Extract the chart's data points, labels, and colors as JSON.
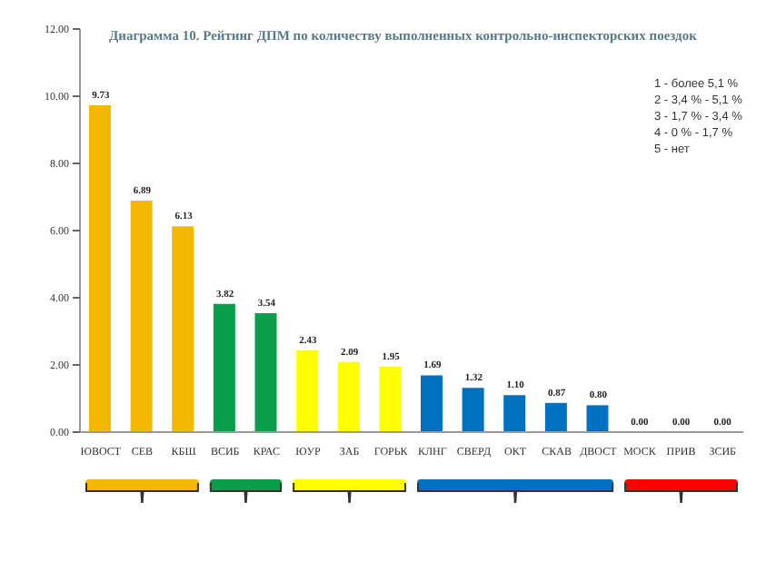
{
  "chart_data": {
    "type": "bar",
    "title": "Диаграмма 10.  Рейтинг ДПМ по количеству выполненных контрольно-инспекторских поездок",
    "categories": [
      "ЮВОСТ",
      "СЕВ",
      "КБШ",
      "ВСИБ",
      "КРАС",
      "ЮУР",
      "ЗАБ",
      "ГОРЬК",
      "КЛНГ",
      "СВЕРД",
      "ОКТ",
      "СКАВ",
      "ДВОСТ",
      "МОСК",
      "ПРИВ",
      "ЗСИБ"
    ],
    "values": [
      9.73,
      6.89,
      6.13,
      3.82,
      3.54,
      2.43,
      2.09,
      1.95,
      1.69,
      1.32,
      1.1,
      0.87,
      0.8,
      0,
      0,
      0
    ],
    "colors": [
      "#f5b800",
      "#f5b800",
      "#f5b800",
      "#0a9e4a",
      "#0a9e4a",
      "#ffff00",
      "#ffff00",
      "#ffff00",
      "#0070c0",
      "#0070c0",
      "#0070c0",
      "#0070c0",
      "#0070c0",
      "#ff0000",
      "#ff0000",
      "#ff0000"
    ],
    "value_labels": [
      "9.73",
      "6.89",
      "6.13",
      "3.82",
      "3.54",
      "2.43",
      "2.09",
      "1.95",
      "1.69",
      "1.32",
      "1.10",
      "0.87",
      "0.80",
      "0.00",
      "0.00",
      "0.00"
    ],
    "ylim": [
      0,
      12
    ],
    "yticks": [
      {
        "value": 0,
        "label": "0.00"
      },
      {
        "value": 2,
        "label": "2.00"
      },
      {
        "value": 4,
        "label": "4.00"
      },
      {
        "value": 6,
        "label": "6.00"
      },
      {
        "value": 8,
        "label": "8.00"
      },
      {
        "value": 10,
        "label": "10.00"
      },
      {
        "value": 12,
        "label": "12.00"
      }
    ],
    "grid": false,
    "annotations": [
      "1 - более 5,1 %",
      "2 - 3,4 % - 5,1 %",
      "3 - 1,7 % - 3,4 %",
      "4 - 0 % - 1,7 %",
      "5 - нет"
    ]
  }
}
